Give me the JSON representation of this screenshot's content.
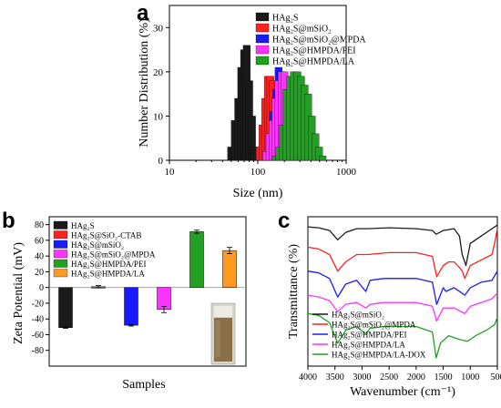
{
  "colors": {
    "HAg2S": "#1a1a1a",
    "HAg2S@mSiO2": "#ff2020",
    "HAg2S@mSiO2@MPDA": "#1a1aff",
    "HAg2S@HMPDA/PEI": "#ff33ff",
    "HAg2S@HMPDA/LA": "#22a022",
    "HAg2S@SiO2-CTAB": "#ff2020",
    "HAg2S@mSiO2_b": "#1a1aff",
    "HAg2S@mSiO2@MPDA_b": "#ff33ff",
    "HAg2S@HMPDA/PEI_b": "#22a022",
    "HAg2S@HMPDA/LA_b": "#ff9922",
    "HAg2S@HMPDA/LA-DOX": "#22a022"
  },
  "chart_data": [
    {
      "panel": "a",
      "type": "bar",
      "xlabel": "Size (nm)",
      "ylabel": "Number Distribution (%)",
      "xscale": "log",
      "xlim": [
        10,
        1000
      ],
      "ylim": [
        0,
        35
      ],
      "xticks": [
        "10",
        "100",
        "1000"
      ],
      "yticks": [
        "0",
        "10",
        "20",
        "30"
      ],
      "legend_position": "top-right",
      "legend": [
        "HAg₂S",
        "HAg₂S@mSiO₂",
        "HAg₂S@mSiO₂@MPDA",
        "HAg₂S@HMPDA/PEI",
        "HAg₂S@HMPDA/LA"
      ],
      "series": [
        {
          "name": "HAg₂S",
          "x": [
            50,
            55,
            60,
            65,
            70,
            75,
            80,
            86,
            92
          ],
          "values": [
            3,
            9,
            14,
            21,
            25,
            26,
            18,
            10,
            3
          ]
        },
        {
          "name": "HAg₂S@mSiO₂",
          "x": [
            105,
            113,
            121,
            130,
            139,
            149,
            160,
            171,
            183
          ],
          "values": [
            3,
            8,
            14,
            19,
            19,
            18,
            10,
            5,
            2
          ]
        },
        {
          "name": "HAg₂S@mSiO₂@MPDA",
          "x": [
            140,
            150,
            161,
            172,
            184,
            197,
            211,
            226
          ],
          "values": [
            5,
            11,
            16,
            21,
            20,
            15,
            9,
            4
          ]
        },
        {
          "name": "HAg₂S@HMPDA/PEI",
          "x": [
            125,
            136,
            147,
            159,
            172,
            186,
            201,
            217,
            235
          ],
          "values": [
            2,
            6,
            9,
            14,
            18,
            20,
            20,
            16,
            9
          ]
        },
        {
          "name": "HAg₂S@HMPDA/LA",
          "x": [
            160,
            176,
            193,
            212,
            233,
            256,
            281,
            309,
            339,
            372,
            409,
            449,
            493,
            541
          ],
          "values": [
            1,
            3,
            8,
            16,
            19,
            20,
            20,
            19,
            17,
            15,
            10,
            6,
            3,
            1
          ]
        }
      ]
    },
    {
      "panel": "b",
      "type": "bar",
      "xlabel": "Samples",
      "ylabel": "Zeta Potential (mV)",
      "ylim": [
        -100,
        90
      ],
      "yticks": [
        "-80",
        "-60",
        "-40",
        "-20",
        "0",
        "20",
        "40",
        "60",
        "80"
      ],
      "legend_position": "top-left",
      "legend": [
        "HAg₂S",
        "HAg₂S@SiO₂-CTAB",
        "HAg₂S@mSiO₂",
        "HAg₂S@mSiO₂@MPDA",
        "HAg₂S@HMPDA/PEI",
        "HAg₂S@HMPDA/LA"
      ],
      "values": [
        -51,
        1,
        -48,
        -28,
        71,
        47
      ],
      "errors": [
        1,
        1.5,
        1,
        4,
        2,
        4
      ]
    },
    {
      "panel": "c",
      "type": "line",
      "xlabel": "Wavenumber (cm⁻¹)",
      "ylabel": "Transmittance (%)",
      "xlim": [
        4000,
        500
      ],
      "xticks": [
        "4000",
        "3500",
        "3000",
        "2500",
        "2000",
        "1500",
        "1000",
        "500"
      ],
      "legend_position": "bottom-left",
      "legend": [
        "HAg₂S@mSiO₂",
        "HAg₂S@mSiO₂@MPDA",
        "HAg₂S@HMPDA/PEI",
        "HAg₂S@HMPDA/LA",
        "HAg₂S@HMPDA/LA-DOX"
      ],
      "series": [
        {
          "name": "HAg₂S@mSiO₂",
          "x": [
            4000,
            3800,
            3600,
            3450,
            3300,
            3100,
            2900,
            2500,
            2000,
            1700,
            1630,
            1500,
            1300,
            1200,
            1150,
            1080,
            1000,
            950,
            800,
            600,
            500
          ],
          "values": [
            71,
            70.5,
            69,
            64,
            68,
            70,
            70,
            70.5,
            70,
            69,
            67,
            69,
            70,
            66,
            56,
            50,
            62,
            63,
            66,
            70,
            72
          ]
        },
        {
          "name": "HAg₂S@mSiO₂@MPDA",
          "x": [
            4000,
            3800,
            3600,
            3450,
            3300,
            3100,
            2900,
            2500,
            2000,
            1700,
            1620,
            1500,
            1400,
            1300,
            1200,
            1150,
            1100,
            1000,
            800,
            600,
            550,
            500
          ],
          "values": [
            60,
            59,
            56,
            47,
            52,
            56,
            56,
            57,
            57,
            55,
            44,
            50,
            52,
            52,
            49,
            47,
            43,
            50,
            53,
            56,
            62,
            70
          ]
        },
        {
          "name": "HAg₂S@HMPDA/PEI",
          "x": [
            4000,
            3800,
            3600,
            3450,
            3300,
            3100,
            2930,
            2850,
            2600,
            2000,
            1700,
            1620,
            1500,
            1450,
            1300,
            1100,
            1000,
            800,
            600,
            500
          ],
          "values": [
            47,
            46,
            43,
            33,
            40,
            42,
            36,
            42,
            43,
            43,
            41,
            29,
            38,
            36,
            38,
            34,
            38,
            41,
            42,
            47
          ]
        },
        {
          "name": "HAg₂S@HMPDA/LA",
          "x": [
            4000,
            3800,
            3600,
            3450,
            3300,
            3100,
            2930,
            2850,
            2600,
            2000,
            1700,
            1620,
            1500,
            1300,
            1100,
            1000,
            800,
            600,
            500
          ],
          "values": [
            34,
            33,
            31,
            25,
            29,
            30,
            27,
            29,
            30,
            30,
            28,
            20,
            27,
            27,
            24,
            28,
            30,
            32,
            35
          ]
        },
        {
          "name": "HAg₂S@HMPDA/LA-DOX",
          "x": [
            4000,
            3800,
            3600,
            3450,
            3300,
            3100,
            2930,
            2850,
            2600,
            2000,
            1700,
            1630,
            1550,
            1400,
            1200,
            1050,
            900,
            700,
            550,
            500
          ],
          "values": [
            24,
            23,
            19,
            8,
            15,
            17,
            13,
            16,
            17,
            17,
            14,
            0,
            8,
            12,
            10,
            9,
            12,
            15,
            18,
            22
          ]
        }
      ]
    }
  ]
}
